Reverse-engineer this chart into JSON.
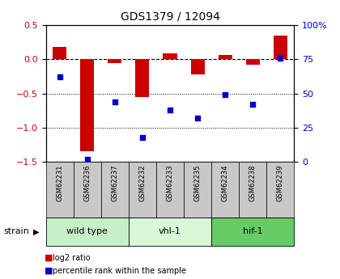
{
  "title": "GDS1379 / 12094",
  "samples": [
    "GSM62231",
    "GSM62236",
    "GSM62237",
    "GSM62232",
    "GSM62233",
    "GSM62235",
    "GSM62234",
    "GSM62238",
    "GSM62239"
  ],
  "log2_ratio": [
    0.18,
    -1.35,
    -0.05,
    -0.55,
    0.09,
    -0.22,
    0.06,
    -0.08,
    0.35
  ],
  "percentile_rank": [
    62,
    2,
    44,
    18,
    38,
    32,
    49,
    42,
    76
  ],
  "ylim_left": [
    -1.5,
    0.5
  ],
  "ylim_right": [
    0,
    100
  ],
  "yticks_left": [
    -1.5,
    -1.0,
    -0.5,
    0.0,
    0.5
  ],
  "yticks_right": [
    0,
    25,
    50,
    75,
    100
  ],
  "dotted_lines": [
    -0.5,
    -1.0
  ],
  "groups": [
    {
      "label": "wild type",
      "start": 0,
      "end": 3,
      "color": "#c8f0c8"
    },
    {
      "label": "vhl-1",
      "start": 3,
      "end": 6,
      "color": "#d8f8d8"
    },
    {
      "label": "hif-1",
      "start": 6,
      "end": 9,
      "color": "#66cc66"
    }
  ],
  "bar_color": "#cc0000",
  "dot_color": "#0000cc",
  "bar_width": 0.5,
  "legend_bar_label": "log2 ratio",
  "legend_dot_label": "percentile rank within the sample",
  "strain_label": "strain",
  "bg_color": "#ffffff",
  "plot_bg": "#ffffff",
  "tick_label_color_left": "#cc0000",
  "tick_label_color_right": "#0000cc",
  "title_color": "#000000",
  "sample_bg_color": "#c8c8c8"
}
